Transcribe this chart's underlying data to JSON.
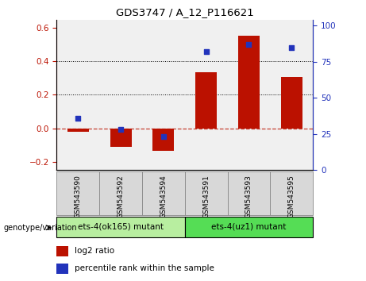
{
  "title": "GDS3747 / A_12_P116621",
  "categories": [
    "GSM543590",
    "GSM543592",
    "GSM543594",
    "GSM543591",
    "GSM543593",
    "GSM543595"
  ],
  "log2_ratio": [
    -0.02,
    -0.11,
    -0.135,
    0.335,
    0.555,
    0.305
  ],
  "percentile_rank": [
    36,
    28,
    23,
    82,
    87,
    85
  ],
  "bar_color": "#bb1100",
  "dot_color": "#2233bb",
  "ylim_left": [
    -0.25,
    0.65
  ],
  "ylim_right": [
    0,
    104.1667
  ],
  "yticks_left": [
    -0.2,
    0.0,
    0.2,
    0.4,
    0.6
  ],
  "yticks_right": [
    0,
    25,
    50,
    75,
    100
  ],
  "dotted_lines": [
    0.2,
    0.4
  ],
  "group1_label": "ets-4(ok165) mutant",
  "group2_label": "ets-4(uz1) mutant",
  "group1_indices": [
    0,
    1,
    2
  ],
  "group2_indices": [
    3,
    4,
    5
  ],
  "group1_color": "#b8eea0",
  "group2_color": "#55dd55",
  "genotype_label": "genotype/variation",
  "legend_bar_label": "log2 ratio",
  "legend_dot_label": "percentile rank within the sample",
  "bar_width": 0.5,
  "tick_bg_color": "#d8d8d8",
  "plot_bg": "#f0f0f0"
}
